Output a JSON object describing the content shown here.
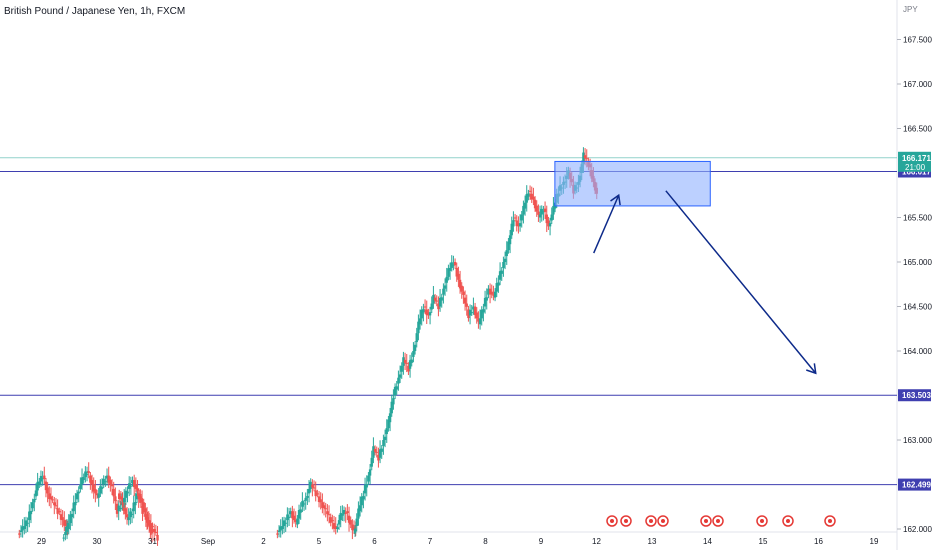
{
  "chart_data": {
    "type": "candlestick",
    "title": "British Pound / Japanese Yen, 1h, FXCM",
    "currency": "JPY",
    "ylim": [
      161.9,
      168.0
    ],
    "y_ticks": [
      167.5,
      167.0,
      166.5,
      165.5,
      165.0,
      164.5,
      164.0,
      163.0,
      162.0
    ],
    "y_tick_labels": [
      "167.500",
      "167.000",
      "166.500",
      "165.500",
      "165.000",
      "164.500",
      "164.000",
      "163.000",
      "162.000"
    ],
    "x_ticks": [
      {
        "label": "29",
        "day": -3
      },
      {
        "label": "30",
        "day": -2
      },
      {
        "label": "31",
        "day": -1
      },
      {
        "label": "Sep",
        "day": 0
      },
      {
        "label": "2",
        "day": 1
      },
      {
        "label": "5",
        "day": 2
      },
      {
        "label": "6",
        "day": 3
      },
      {
        "label": "7",
        "day": 4
      },
      {
        "label": "8",
        "day": 5
      },
      {
        "label": "9",
        "day": 6
      },
      {
        "label": "12",
        "day": 7
      },
      {
        "label": "13",
        "day": 8
      },
      {
        "label": "14",
        "day": 9
      },
      {
        "label": "15",
        "day": 10
      },
      {
        "label": "16",
        "day": 11
      },
      {
        "label": "19",
        "day": 12
      }
    ],
    "current_price": {
      "value": 166.171,
      "label": "166.171",
      "countdown": "21:00",
      "color": "#26a69a"
    },
    "levels": [
      {
        "value": 166.017,
        "label": "166.017",
        "color": "#3f3fb0"
      },
      {
        "value": 163.503,
        "label": "163.503",
        "color": "#3f3fb0"
      },
      {
        "value": 162.499,
        "label": "162.499",
        "color": "#3f3fb0"
      }
    ],
    "zone": {
      "day_start": 6.25,
      "day_end": 9.05,
      "price_top": 166.13,
      "price_bottom": 165.63,
      "fill": "#8fb0ff",
      "stroke": "#2962ff"
    },
    "arrows": [
      {
        "from": {
          "day": 6.95,
          "price": 165.1
        },
        "to": {
          "day": 7.4,
          "price": 165.75
        },
        "color": "#0d2a8a"
      },
      {
        "from": {
          "day": 8.25,
          "price": 165.8
        },
        "to": {
          "day": 10.95,
          "price": 163.75
        },
        "color": "#0d2a8a"
      }
    ],
    "colors": {
      "up": "#26a69a",
      "down": "#ef5350"
    },
    "candles_by_day": [
      {
        "day": -3.4,
        "path": [
          161.95,
          162.0,
          162.1,
          162.3,
          162.5,
          162.6,
          162.4,
          162.3,
          162.2,
          162.1,
          162.0
        ]
      },
      {
        "day": -2.6,
        "path": [
          161.9,
          162.0,
          162.2,
          162.4,
          162.55,
          162.65,
          162.5,
          162.35,
          162.5,
          162.6,
          162.45,
          162.2,
          162.3,
          162.1,
          162.2,
          162.4,
          162.3,
          162.1,
          161.95
        ]
      },
      {
        "day": -1.6,
        "path": [
          162.4,
          162.3,
          162.45,
          162.55,
          162.4,
          162.2,
          162.1,
          162.0,
          161.9
        ]
      },
      {
        "day": 1.25,
        "path": [
          161.95,
          162.0,
          162.1,
          162.2,
          162.05,
          162.25,
          162.35,
          162.5,
          162.4,
          162.3,
          162.2,
          162.1,
          162.0,
          162.15,
          162.2,
          162.05,
          161.95
        ]
      },
      {
        "day": 2.65,
        "path": [
          161.95,
          162.2,
          162.4,
          162.6,
          162.9,
          162.8,
          163.0,
          163.2,
          163.5,
          163.7,
          163.9,
          163.8,
          164.0,
          164.3,
          164.5,
          164.4,
          164.6,
          164.5,
          164.7,
          164.9,
          165.0,
          164.8,
          164.6,
          164.4,
          164.5,
          164.3,
          164.5,
          164.7,
          164.6,
          164.8,
          165.0,
          165.2,
          165.5,
          165.4,
          165.6,
          165.8,
          165.7,
          165.5,
          165.6,
          165.4,
          165.6,
          165.8,
          165.9,
          166.0,
          165.8,
          165.9,
          166.2,
          166.1,
          165.9,
          165.7,
          165.8,
          165.6,
          165.5,
          165.7,
          165.9,
          165.8,
          165.6,
          165.4,
          165.6,
          165.5,
          165.7,
          165.8,
          165.9,
          165.7,
          165.8,
          166.0,
          166.2,
          166.0,
          165.7,
          165.5,
          165.0,
          164.8,
          164.5,
          164.7,
          164.9,
          165.2,
          165.5,
          165.4,
          165.3,
          165.5,
          165.4,
          165.6,
          165.7,
          165.8,
          166.0,
          166.17
        ]
      }
    ]
  }
}
